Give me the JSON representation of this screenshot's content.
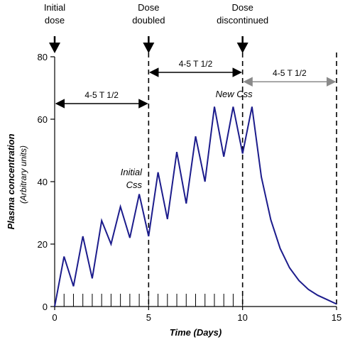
{
  "chart_data": {
    "type": "line",
    "xlabel": "Time (Days)",
    "ylabel": "Plasma concentration",
    "ylabel_sub": "(Arbitrary units)",
    "xlim": [
      0,
      15
    ],
    "ylim": [
      0,
      80
    ],
    "x_ticks": [
      0,
      5,
      10,
      15
    ],
    "y_ticks": [
      0,
      20,
      40,
      60,
      80
    ],
    "x_minor_ticks": [
      0.5,
      1,
      1.5,
      2,
      2.5,
      3,
      3.5,
      4,
      4.5,
      5,
      5.5,
      6,
      6.5,
      7,
      7.5,
      8,
      8.5,
      9,
      9.5,
      10
    ],
    "grid": false,
    "series": [
      {
        "color": "#1c1c8c",
        "x": [
          0,
          0.5,
          1,
          1.5,
          2,
          2.5,
          3,
          3.5,
          4,
          4.5,
          5,
          5.5,
          6,
          6.5,
          7,
          7.5,
          8,
          8.5,
          9,
          9.5,
          10,
          10.5,
          11,
          11.5,
          12,
          12.5,
          13,
          13.5,
          14,
          14.5,
          15
        ],
        "y": [
          0,
          16,
          6.5,
          22.5,
          9,
          27.5,
          20,
          32,
          22,
          36,
          22.5,
          43,
          28,
          49.5,
          33,
          54.5,
          40,
          64,
          48,
          64,
          49,
          64,
          41.5,
          27.8,
          18.6,
          12.4,
          8.3,
          5.5,
          3.6,
          2.2,
          0.8
        ]
      }
    ],
    "events": [
      {
        "x": 0,
        "label_lines": [
          "Initial",
          "dose"
        ],
        "dashed_line": false
      },
      {
        "x": 5,
        "label_lines": [
          "Dose",
          "doubled"
        ],
        "dashed_line": true
      },
      {
        "x": 10,
        "label_lines": [
          "Dose",
          "discontinued"
        ],
        "dashed_line": true
      },
      {
        "x": 15,
        "label_lines": [],
        "dashed_line": true
      }
    ],
    "intervals": [
      {
        "from": 0,
        "to": 5,
        "y": 65,
        "label": "4-5 T 1/2",
        "color": "#000000"
      },
      {
        "from": 5,
        "to": 10,
        "y": 75,
        "label": "4-5 T 1/2",
        "color": "#000000"
      },
      {
        "from": 10,
        "to": 15,
        "y": 72,
        "label": "4-5 T 1/2",
        "color": "#8a8a8a"
      }
    ],
    "annotations": [
      {
        "lines": [
          "Initial",
          "Css"
        ],
        "x": 4.65,
        "y": 42
      },
      {
        "lines": [
          "New Css"
        ],
        "x": 9.75,
        "y": 67
      }
    ]
  }
}
